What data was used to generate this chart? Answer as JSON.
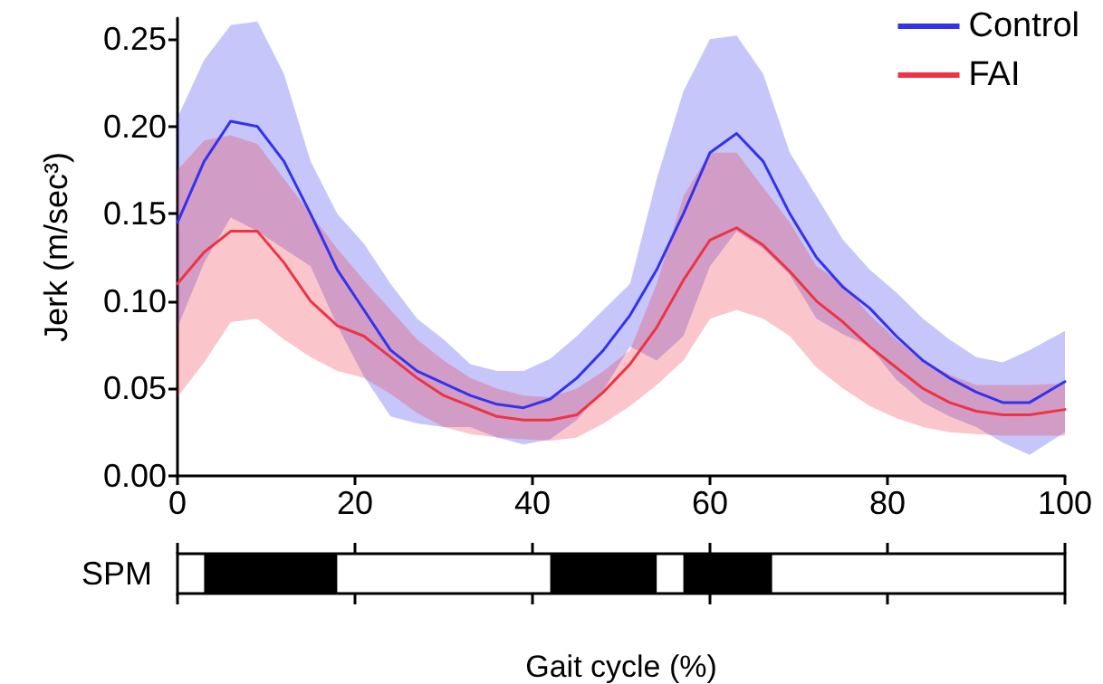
{
  "chart_data": [
    {
      "type": "line",
      "ylabel": "Jerk (m/sec³)",
      "x": [
        0,
        3,
        6,
        9,
        12,
        15,
        18,
        21,
        24,
        27,
        30,
        33,
        36,
        39,
        42,
        45,
        48,
        51,
        54,
        57,
        60,
        63,
        66,
        69,
        72,
        75,
        78,
        81,
        84,
        87,
        90,
        93,
        96,
        100
      ],
      "series": [
        {
          "name": "Control",
          "color": "#3333ee",
          "values": [
            0.145,
            0.18,
            0.203,
            0.2,
            0.18,
            0.15,
            0.118,
            0.095,
            0.072,
            0.06,
            0.053,
            0.046,
            0.041,
            0.039,
            0.044,
            0.056,
            0.072,
            0.092,
            0.118,
            0.15,
            0.185,
            0.196,
            0.18,
            0.15,
            0.125,
            0.108,
            0.096,
            0.08,
            0.066,
            0.056,
            0.048,
            0.042,
            0.042,
            0.054
          ],
          "upper": [
            0.205,
            0.238,
            0.258,
            0.26,
            0.23,
            0.18,
            0.15,
            0.133,
            0.11,
            0.09,
            0.078,
            0.064,
            0.06,
            0.06,
            0.067,
            0.08,
            0.095,
            0.11,
            0.17,
            0.22,
            0.25,
            0.252,
            0.23,
            0.185,
            0.16,
            0.135,
            0.118,
            0.105,
            0.09,
            0.078,
            0.068,
            0.065,
            0.072,
            0.083
          ],
          "lower": [
            0.085,
            0.122,
            0.148,
            0.14,
            0.13,
            0.12,
            0.086,
            0.057,
            0.034,
            0.03,
            0.028,
            0.028,
            0.022,
            0.018,
            0.021,
            0.032,
            0.049,
            0.074,
            0.066,
            0.08,
            0.12,
            0.14,
            0.13,
            0.115,
            0.09,
            0.081,
            0.074,
            0.055,
            0.042,
            0.034,
            0.028,
            0.019,
            0.012,
            0.025
          ]
        },
        {
          "name": "FAI",
          "color": "#ee3344",
          "values": [
            0.11,
            0.128,
            0.14,
            0.14,
            0.122,
            0.1,
            0.086,
            0.08,
            0.068,
            0.056,
            0.046,
            0.04,
            0.034,
            0.032,
            0.032,
            0.035,
            0.048,
            0.064,
            0.085,
            0.112,
            0.135,
            0.142,
            0.132,
            0.117,
            0.1,
            0.088,
            0.074,
            0.062,
            0.05,
            0.042,
            0.037,
            0.035,
            0.035,
            0.038
          ],
          "upper": [
            0.175,
            0.192,
            0.195,
            0.19,
            0.17,
            0.15,
            0.13,
            0.112,
            0.095,
            0.078,
            0.066,
            0.056,
            0.05,
            0.046,
            0.045,
            0.05,
            0.06,
            0.072,
            0.11,
            0.16,
            0.185,
            0.185,
            0.165,
            0.145,
            0.12,
            0.11,
            0.092,
            0.078,
            0.066,
            0.058,
            0.052,
            0.052,
            0.052,
            0.053
          ],
          "lower": [
            0.045,
            0.065,
            0.088,
            0.09,
            0.078,
            0.068,
            0.06,
            0.056,
            0.047,
            0.036,
            0.028,
            0.024,
            0.022,
            0.021,
            0.02,
            0.022,
            0.03,
            0.04,
            0.052,
            0.066,
            0.09,
            0.095,
            0.09,
            0.08,
            0.062,
            0.05,
            0.04,
            0.033,
            0.028,
            0.025,
            0.024,
            0.023,
            0.023,
            0.023
          ]
        }
      ],
      "xlim": [
        0,
        100
      ],
      "xticks": [
        0,
        20,
        40,
        60,
        80,
        100
      ],
      "ylim": [
        0,
        0.262
      ],
      "yticks": [
        {
          "value": 0,
          "label": "0.00"
        },
        {
          "value": 0.05,
          "label": "0.05"
        },
        {
          "value": 0.1,
          "label": "0.10"
        },
        {
          "value": 0.15,
          "label": "0.15"
        },
        {
          "value": 0.2,
          "label": "0.20"
        },
        {
          "value": 0.25,
          "label": "0.25"
        }
      ],
      "legend": "top right",
      "grid": false,
      "marker": "none",
      "line_style": "solid"
    },
    {
      "type": "bar",
      "orientation": "horizontal",
      "xlabel": "Gait cycle (%)",
      "categories": [
        "SPM"
      ],
      "series": [
        {
          "color": "#000000",
          "values": [
            15
          ],
          "base": [
            3
          ]
        },
        {
          "color": "#000000",
          "values": [
            12
          ],
          "base": [
            42
          ]
        },
        {
          "color": "#000000",
          "values": [
            10
          ],
          "base": [
            57
          ]
        }
      ],
      "xlim": [
        0,
        100
      ],
      "xticks": [
        0,
        20,
        40,
        60,
        80,
        100
      ],
      "tick_labels": "y",
      "grid": false
    }
  ]
}
